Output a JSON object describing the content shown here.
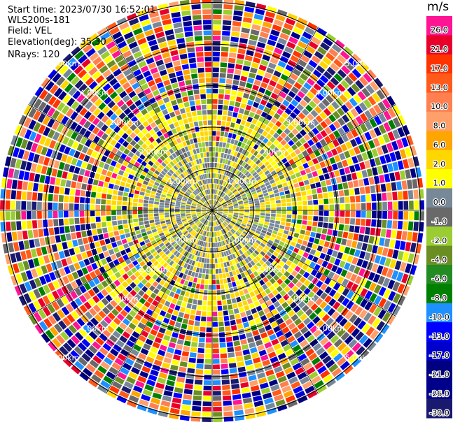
{
  "header": {
    "start_time": "Start time: 2023/07/30 16:52:01",
    "instrument": "WLS200s-181",
    "field": "Field: VEL",
    "elevation": "Elevation(deg): 35.30",
    "nrays": "NRays: 120"
  },
  "colorbar": {
    "unit": "m/s",
    "ticks": [
      "26.0",
      "21.0",
      "17.0",
      "13.0",
      "10.0",
      "8.0",
      "6.0",
      "2.0",
      "1.0",
      "0.0",
      "-1.0",
      "-2.0",
      "-4.0",
      "-6.0",
      "-8.0",
      "-10.0",
      "-13.0",
      "-17.0",
      "-21.0",
      "-26.0",
      "-30.0"
    ],
    "colors": [
      "#ff1493",
      "#e8002a",
      "#ff3300",
      "#ff5a1a",
      "#ff7f50",
      "#ff9f6a",
      "#ffa500",
      "#ffd700",
      "#ffff00",
      "#778899",
      "#696969",
      "#9acd32",
      "#6b8e23",
      "#228b22",
      "#008000",
      "#1e90ff",
      "#0000ff",
      "#0000cd",
      "#000080",
      "#00008b",
      "#191970"
    ]
  },
  "chart_data": {
    "type": "polar-ppi",
    "title": "",
    "n_rays": 120,
    "range_unit": "km",
    "range_rings": [
      "1.00km",
      "2.00km",
      "3.00km",
      "4.00km",
      "5.00km"
    ],
    "range_rings_km": [
      1,
      2,
      3,
      4,
      5
    ],
    "ray_bins": [
      "0.0",
      "-1.0",
      "1.0",
      "2.0",
      "-2.0",
      "-4.0",
      "26.0",
      "21.0",
      "-26.0",
      "-13.0",
      "17.0",
      "-8.0",
      "13.0",
      "-30.0",
      "6.0"
    ],
    "note_values": "Velocity field in m/s; near ranges (<1.5 km) mostly 0.0 to 2.0 with patches of -2.0; outer ranges noisy across the full scale."
  }
}
